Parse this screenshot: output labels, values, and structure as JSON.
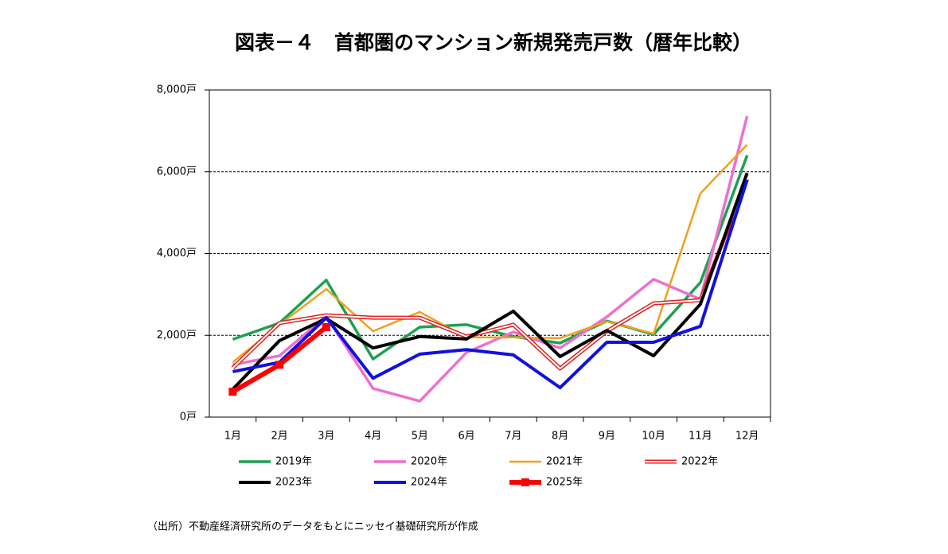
{
  "chart_data": {
    "type": "line",
    "title": "図表－４　首都圏のマンション新規発売戸数（暦年比較）",
    "categories": [
      "1月",
      "2月",
      "3月",
      "4月",
      "5月",
      "6月",
      "7月",
      "8月",
      "9月",
      "10月",
      "11月",
      "12月"
    ],
    "ylim": [
      0,
      8000
    ],
    "yticks": [
      {
        "value": 0,
        "label": "0戸"
      },
      {
        "value": 2000,
        "label": "2,000戸"
      },
      {
        "value": 4000,
        "label": "4,000戸"
      },
      {
        "value": 6000,
        "label": "6,000戸"
      },
      {
        "value": 8000,
        "label": "8,000戸"
      }
    ],
    "grid": true,
    "series": [
      {
        "name": "2019年",
        "color": "#1fa050",
        "values": [
          1900,
          2300,
          3350,
          1420,
          2200,
          2260,
          1970,
          1810,
          2350,
          2020,
          3290,
          6400
        ]
      },
      {
        "name": "2020年",
        "color": "#ee6fcf",
        "values": [
          1280,
          1500,
          2470,
          700,
          390,
          1580,
          2080,
          1690,
          2450,
          3370,
          2880,
          7360
        ]
      },
      {
        "name": "2021年",
        "color": "#f0a020",
        "values": [
          1340,
          2260,
          3130,
          2100,
          2570,
          1950,
          1950,
          1930,
          2340,
          2040,
          5470,
          6660
        ]
      },
      {
        "name": "2022年",
        "color": "#e02020",
        "style": "double",
        "values": [
          1200,
          2300,
          2490,
          2430,
          2430,
          1970,
          2260,
          1190,
          2100,
          2780,
          2860,
          5820
        ]
      },
      {
        "name": "2023年",
        "color": "#000000",
        "values": [
          680,
          1870,
          2410,
          1690,
          1970,
          1910,
          2590,
          1480,
          2120,
          1500,
          2760,
          5970
        ]
      },
      {
        "name": "2024年",
        "color": "#1010e0",
        "values": [
          1110,
          1340,
          2430,
          950,
          1540,
          1650,
          1520,
          720,
          1830,
          1830,
          2220,
          5800
        ]
      },
      {
        "name": "2025年",
        "color": "#ff0000",
        "marker": "square",
        "values": [
          620,
          1280,
          2200,
          null,
          null,
          null,
          null,
          null,
          null,
          null,
          null,
          null
        ]
      }
    ],
    "source": "（出所）不動産経済研究所のデータをもとにニッセイ基礎研究所が作成"
  }
}
